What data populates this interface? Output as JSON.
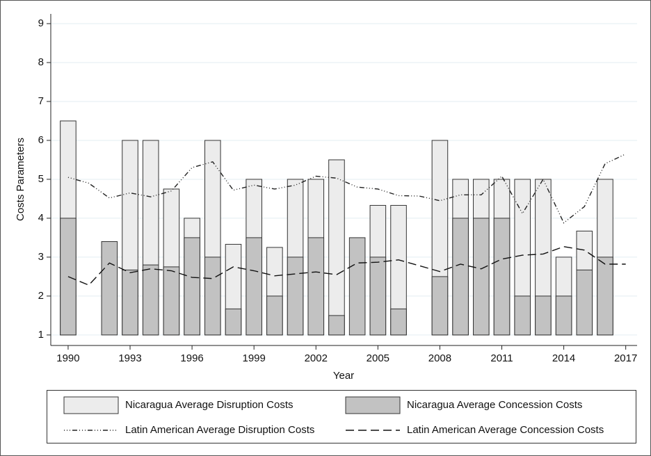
{
  "chart_data": {
    "type": "bar",
    "x_label": "Year",
    "y_label": "Costs Parameters",
    "x": [
      1990,
      1991,
      1992,
      1993,
      1994,
      1995,
      1996,
      1997,
      1998,
      1999,
      2000,
      2001,
      2002,
      2003,
      2004,
      2005,
      2006,
      2007,
      2008,
      2009,
      2010,
      2011,
      2012,
      2013,
      2014,
      2015,
      2016,
      2017
    ],
    "series": [
      {
        "name": "Nicaragua Average Disruption Costs",
        "type": "bar",
        "color": "#ececec",
        "values": [
          6.5,
          null,
          null,
          6,
          6,
          4.75,
          4,
          6,
          3.33,
          5,
          3.25,
          5,
          5,
          5.5,
          null,
          4.33,
          4.33,
          null,
          6,
          5,
          5,
          5,
          5,
          5,
          3,
          3.67,
          5,
          null
        ]
      },
      {
        "name": "Nicaragua Average Concession Costs",
        "type": "bar",
        "color": "#c2c2c2",
        "values": [
          4,
          null,
          3.4,
          2.67,
          2.8,
          2.75,
          3.5,
          3,
          1.67,
          3.5,
          2,
          3,
          3.5,
          1.5,
          3.5,
          3,
          1.67,
          null,
          2.5,
          4,
          4,
          4,
          2,
          2,
          2,
          2.67,
          3,
          null
        ]
      },
      {
        "name": "Latin American Average Disruption Costs",
        "type": "line",
        "color": "#222222",
        "values": [
          5.05,
          4.9,
          4.52,
          4.65,
          4.55,
          4.7,
          5.3,
          5.45,
          4.72,
          4.85,
          4.75,
          4.85,
          5.08,
          5.03,
          4.8,
          4.75,
          4.58,
          4.57,
          4.45,
          4.6,
          4.6,
          5.08,
          4.12,
          5.0,
          3.88,
          4.3,
          5.4,
          5.65
        ]
      },
      {
        "name": "Latin American Average Concession Costs",
        "type": "line",
        "color": "#111111",
        "values": [
          2.5,
          2.28,
          2.85,
          2.6,
          2.7,
          2.65,
          2.48,
          2.45,
          2.75,
          2.65,
          2.52,
          2.57,
          2.62,
          2.55,
          2.85,
          2.87,
          2.93,
          2.78,
          2.63,
          2.82,
          2.7,
          2.95,
          3.05,
          3.08,
          3.27,
          3.18,
          2.82,
          2.82
        ]
      }
    ],
    "xlim": [
      1989.16,
      2017.55
    ],
    "xticks": [
      1990,
      1993,
      1996,
      1999,
      2002,
      2005,
      2008,
      2011,
      2014,
      2017
    ],
    "ylim": [
      0.73,
      9.25
    ],
    "yticks": [
      1,
      2,
      3,
      4,
      5,
      6,
      7,
      8,
      9
    ],
    "grid": true
  }
}
